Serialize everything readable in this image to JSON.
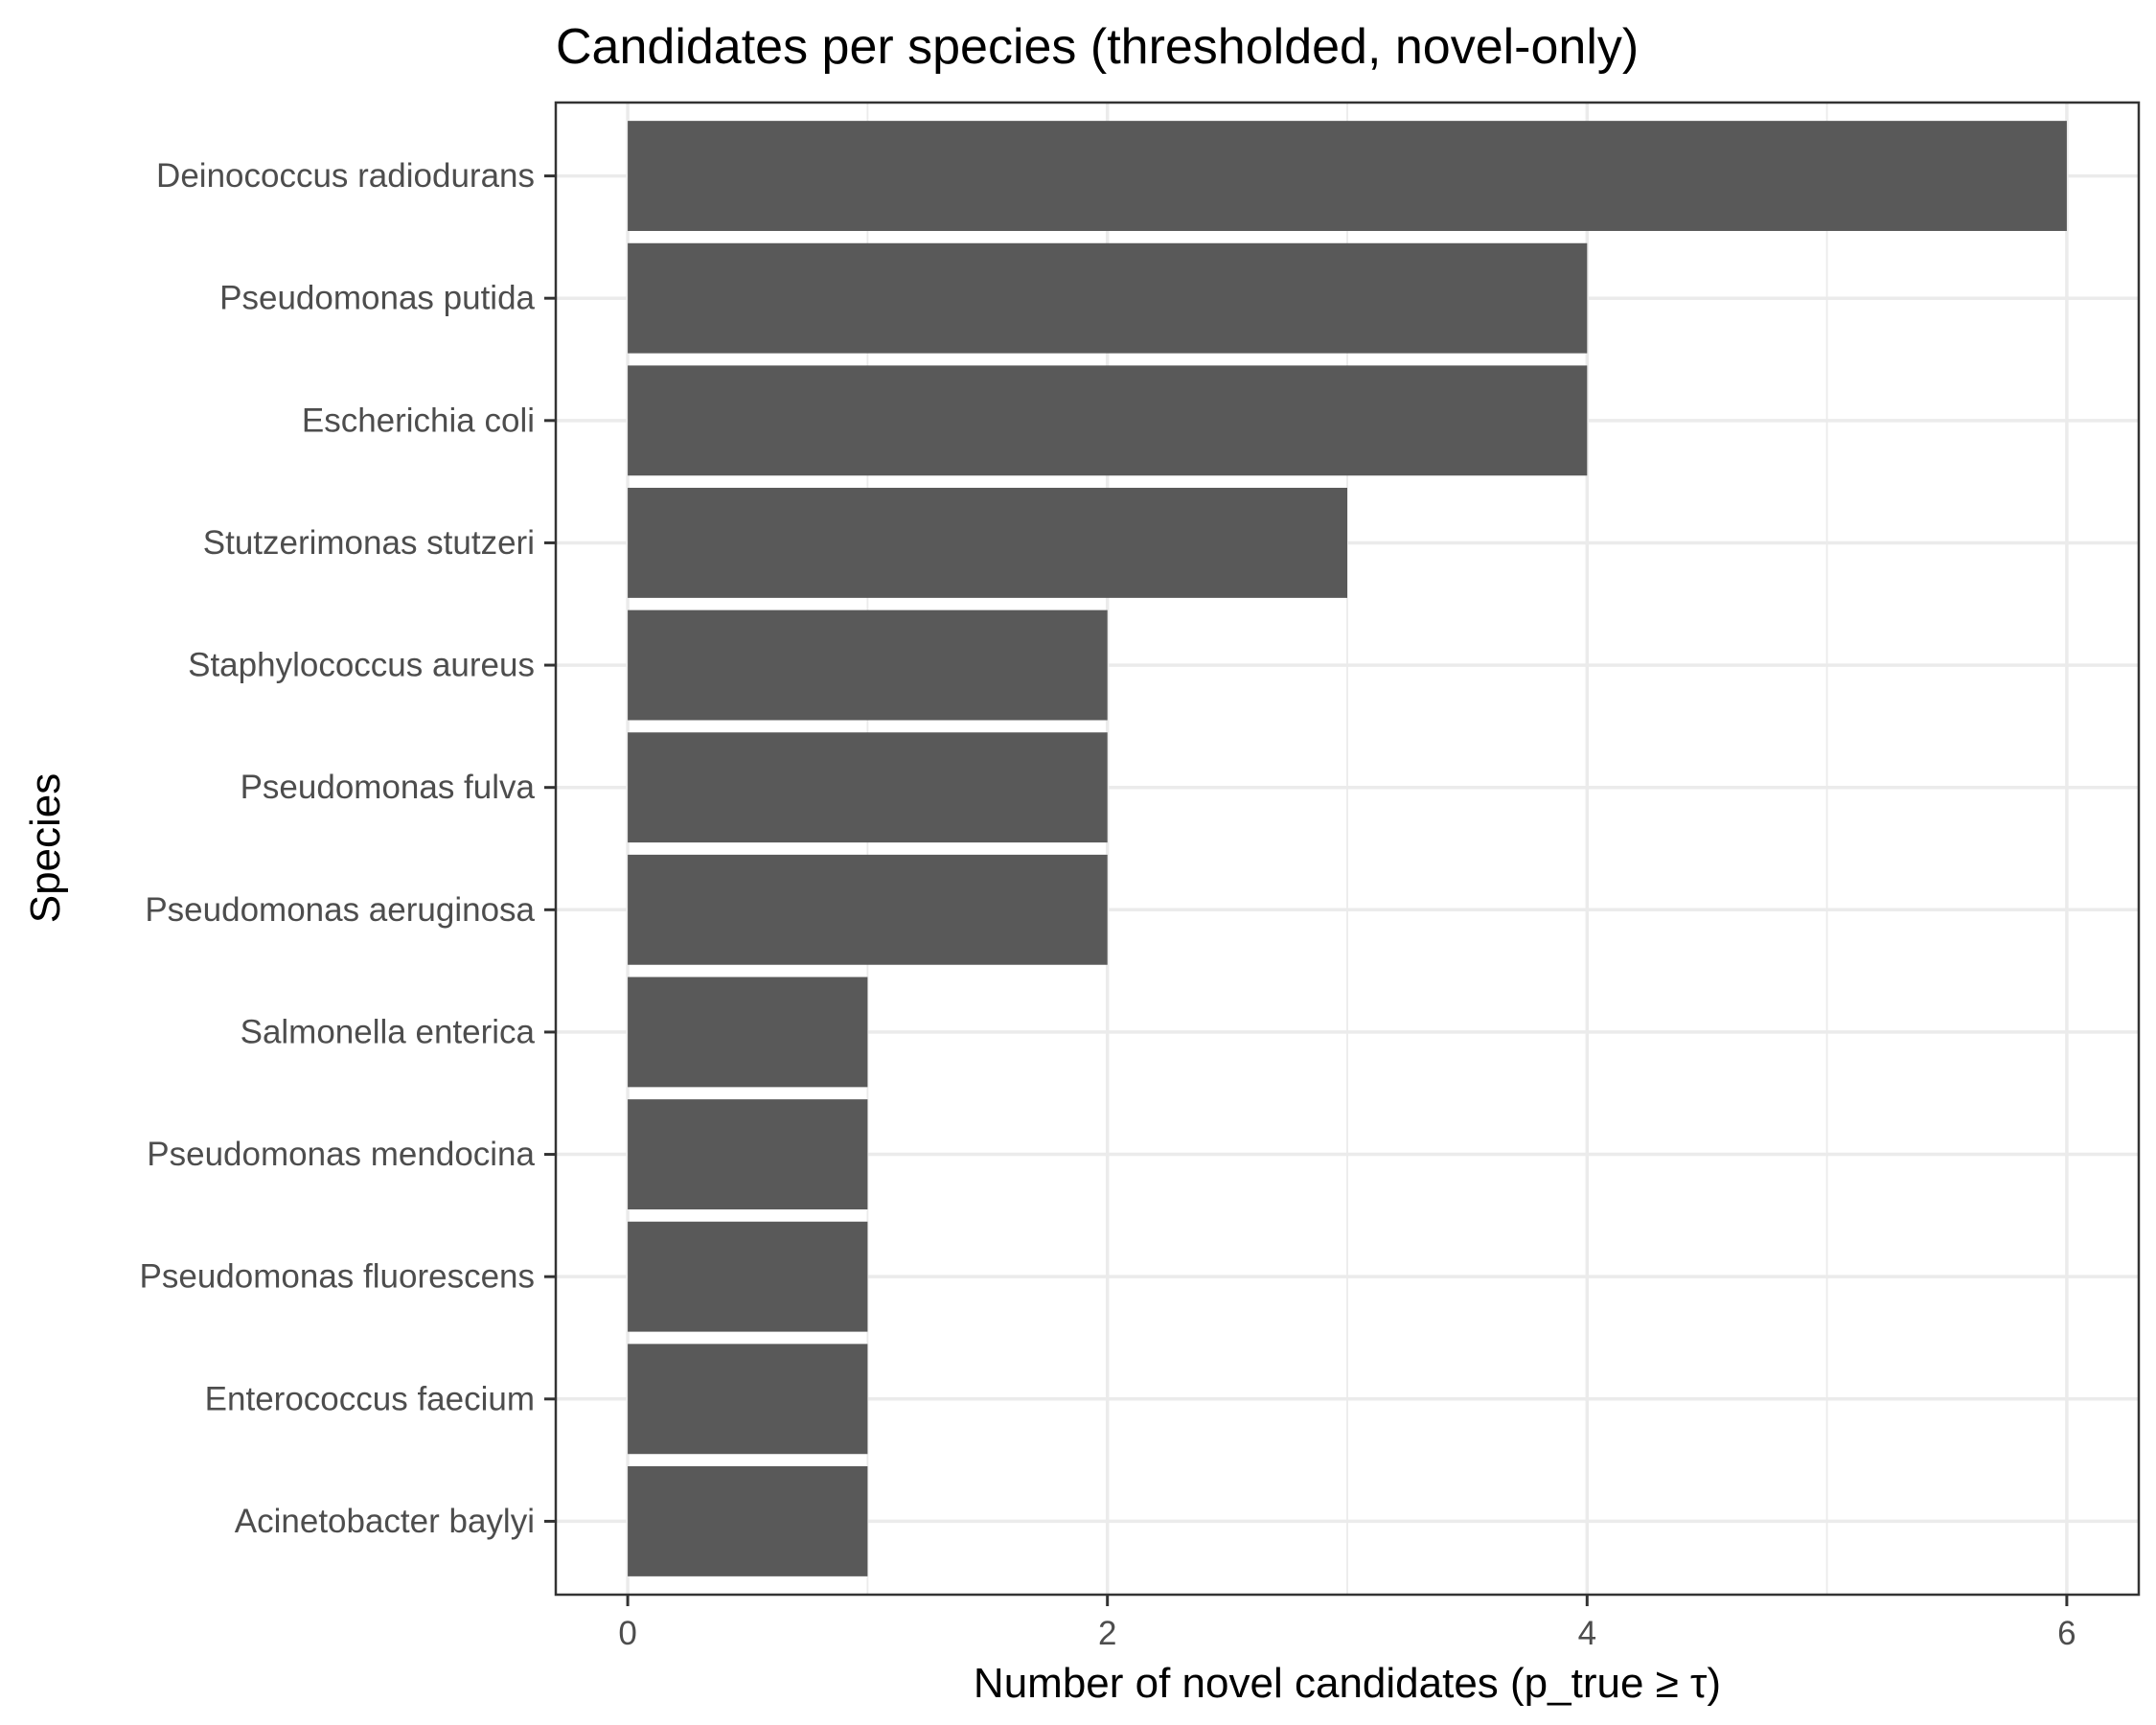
{
  "chart_data": {
    "type": "bar",
    "orientation": "horizontal",
    "title": "Candidates per species (thresholded, novel-only)",
    "xlabel": "Number of novel candidates (p_true ≥ τ)",
    "ylabel": "Species",
    "categories": [
      "Deinococcus radiodurans",
      "Pseudomonas putida",
      "Escherichia coli",
      "Stutzerimonas stutzeri",
      "Staphylococcus aureus",
      "Pseudomonas fulva",
      "Pseudomonas aeruginosa",
      "Salmonella enterica",
      "Pseudomonas mendocina",
      "Pseudomonas fluorescens",
      "Enterococcus faecium",
      "Acinetobacter baylyi"
    ],
    "values": [
      6,
      4,
      4,
      3,
      2,
      2,
      2,
      1,
      1,
      1,
      1,
      1
    ],
    "xlim": [
      -0.3,
      6.3
    ],
    "xticks": [
      0,
      2,
      4,
      6
    ],
    "xtick_labels": [
      "0",
      "2",
      "4",
      "6"
    ],
    "grid": true,
    "legend": "none",
    "colors": {
      "bar": "#595959",
      "grid": "#ebebeb",
      "border": "#333333"
    }
  }
}
